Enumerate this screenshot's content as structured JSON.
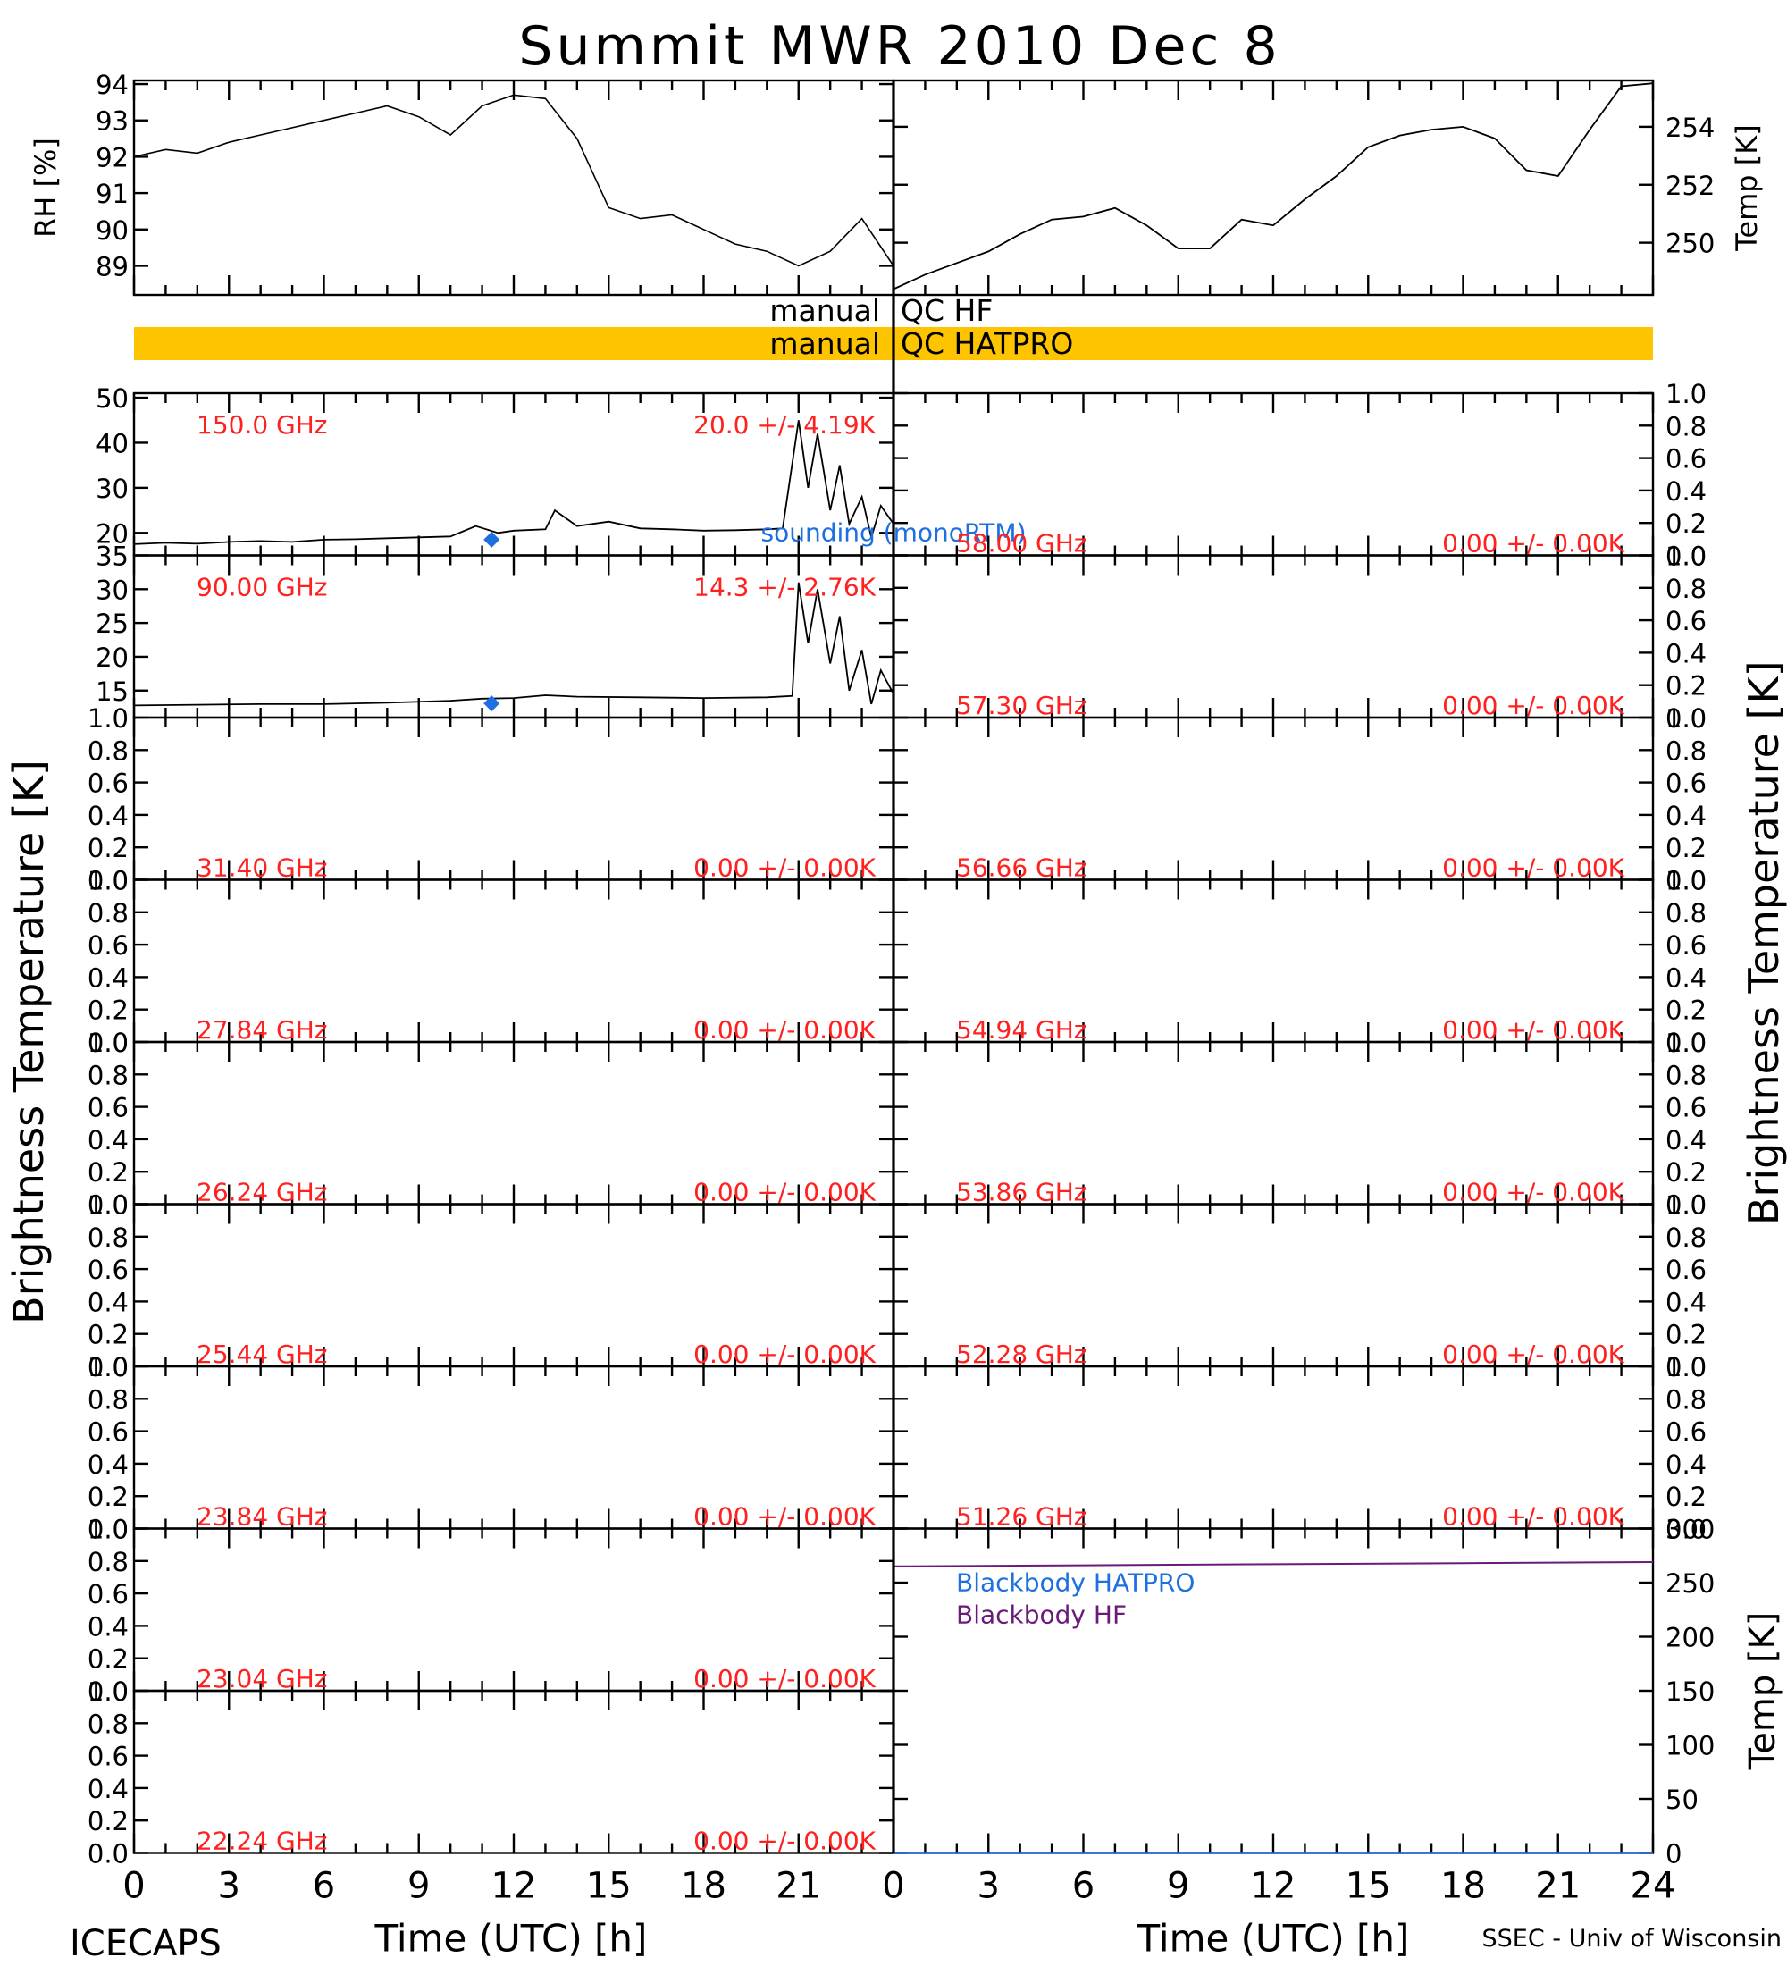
{
  "title": "Summit MWR 2010 Dec  8",
  "footer_left": "ICECAPS",
  "footer_right": "SSEC - Univ of Wisconsin",
  "colors": {
    "qc_bar": "#FFC400",
    "freq_label": "#FF2020",
    "sounding": "#1E6FE0",
    "bb_hatpro": "#1E6FE0",
    "bb_hf": "#6A1B7A",
    "line": "#000000"
  },
  "qc": {
    "hf_label": "manual  QC HF",
    "hatpro_label": "manual  QC HATPRO"
  },
  "chart_data": [
    {
      "id": "rh",
      "type": "line",
      "ylabel": "RH [%]",
      "xlim": [
        0,
        24
      ],
      "ylim": [
        88.2,
        94.1
      ],
      "yticks": [
        "89",
        "90",
        "91",
        "92",
        "93",
        "94"
      ],
      "series": [
        {
          "x": [
            0,
            1,
            2,
            3,
            4,
            5,
            6,
            7,
            8,
            9,
            10,
            11,
            12,
            13,
            14,
            15,
            16,
            17,
            18,
            19,
            20,
            21,
            22,
            23,
            24
          ],
          "y": [
            92.0,
            92.2,
            92.1,
            92.4,
            92.6,
            92.8,
            93.0,
            93.2,
            93.4,
            93.1,
            92.6,
            93.4,
            93.7,
            93.6,
            92.5,
            90.6,
            90.3,
            90.4,
            90.0,
            89.6,
            89.4,
            89.0,
            89.4,
            90.3,
            89.0
          ]
        }
      ]
    },
    {
      "id": "temp",
      "type": "line",
      "ylabel": "Temp [K]",
      "xlim": [
        0,
        24
      ],
      "ylim": [
        248.2,
        255.6
      ],
      "yticks": [
        "250",
        "252",
        "254"
      ],
      "series": [
        {
          "x": [
            0,
            1,
            2,
            3,
            4,
            5,
            6,
            7,
            8,
            9,
            10,
            11,
            12,
            13,
            14,
            15,
            16,
            17,
            18,
            19,
            20,
            21,
            22,
            23,
            24
          ],
          "y": [
            248.4,
            248.9,
            249.3,
            249.7,
            250.3,
            250.8,
            250.9,
            251.2,
            250.6,
            249.8,
            249.8,
            250.8,
            250.6,
            251.5,
            252.3,
            253.3,
            253.7,
            253.9,
            254.0,
            253.6,
            252.5,
            252.3,
            253.9,
            255.4,
            255.5
          ]
        }
      ]
    },
    {
      "id": "bt150",
      "type": "line",
      "freq_label": "150.0 GHz",
      "stat_label": "20.0 +/-  4.19K",
      "xlim": [
        0,
        24
      ],
      "ylim": [
        15,
        51
      ],
      "yticks": [
        "20",
        "30",
        "40",
        "50"
      ],
      "sounding_label": "sounding (monoRTM)",
      "sounding_point": {
        "x": 11.3,
        "y": 18.5
      },
      "series": [
        {
          "x": [
            0,
            1,
            2,
            3,
            4,
            5,
            6,
            7,
            8,
            9,
            10,
            10.8,
            11.5,
            12,
            13,
            13.3,
            14,
            15,
            16,
            17,
            18,
            19,
            20,
            20.5,
            21,
            21.3,
            21.6,
            22,
            22.3,
            22.6,
            23,
            23.3,
            23.6,
            24
          ],
          "y": [
            17.5,
            17.8,
            17.6,
            18.0,
            18.2,
            18.0,
            18.5,
            18.6,
            18.8,
            19.0,
            19.2,
            21.5,
            20.0,
            20.5,
            20.8,
            25.0,
            21.5,
            22.5,
            21.0,
            20.8,
            20.5,
            20.6,
            20.8,
            21.0,
            45.0,
            30.0,
            42.0,
            25.0,
            35.0,
            22.0,
            28.0,
            19.0,
            26.0,
            22.0
          ]
        }
      ]
    },
    {
      "id": "bt90",
      "type": "line",
      "freq_label": "90.00 GHz",
      "stat_label": "14.3 +/-  2.76K",
      "xlim": [
        0,
        24
      ],
      "ylim": [
        11,
        35
      ],
      "yticks": [
        "15",
        "20",
        "25",
        "30",
        "35"
      ],
      "sounding_point": {
        "x": 11.3,
        "y": 13.1
      },
      "series": [
        {
          "x": [
            0,
            2,
            4,
            6,
            8,
            10,
            11,
            12,
            13,
            14,
            16,
            18,
            20,
            20.8,
            21,
            21.3,
            21.6,
            22,
            22.3,
            22.6,
            23,
            23.3,
            23.6,
            24
          ],
          "y": [
            12.8,
            12.9,
            13.0,
            13.0,
            13.2,
            13.5,
            13.8,
            13.9,
            14.3,
            14.1,
            14.0,
            13.9,
            14.0,
            14.2,
            31.0,
            22.0,
            30.0,
            19.0,
            26.0,
            15.0,
            21.0,
            13.0,
            18.0,
            14.5
          ]
        }
      ]
    },
    {
      "id": "bt31.40",
      "type": "line",
      "freq_label": "31.40 GHz",
      "stat_label": "0.00 +/-  0.00K",
      "ylim": [
        0,
        1
      ],
      "series": []
    },
    {
      "id": "bt27.84",
      "type": "line",
      "freq_label": "27.84 GHz",
      "stat_label": "0.00 +/-  0.00K",
      "ylim": [
        0,
        1
      ],
      "series": []
    },
    {
      "id": "bt26.24",
      "type": "line",
      "freq_label": "26.24 GHz",
      "stat_label": "0.00 +/-  0.00K",
      "ylim": [
        0,
        1
      ],
      "series": []
    },
    {
      "id": "bt25.44",
      "type": "line",
      "freq_label": "25.44 GHz",
      "stat_label": "0.00 +/-  0.00K",
      "ylim": [
        0,
        1
      ],
      "series": []
    },
    {
      "id": "bt23.84",
      "type": "line",
      "freq_label": "23.84 GHz",
      "stat_label": "0.00 +/-  0.00K",
      "ylim": [
        0,
        1
      ],
      "series": []
    },
    {
      "id": "bt23.04",
      "type": "line",
      "freq_label": "23.04 GHz",
      "stat_label": "0.00 +/-  0.00K",
      "ylim": [
        0,
        1
      ],
      "series": []
    },
    {
      "id": "bt22.24",
      "type": "line",
      "freq_label": "22.24 GHz",
      "stat_label": "0.00 +/-  0.00K",
      "ylim": [
        0,
        1
      ],
      "series": []
    },
    {
      "id": "bt58.00",
      "type": "line",
      "freq_label": "58.00 GHz",
      "stat_label": "0.00 +/-  0.00K",
      "ylim": [
        0,
        1
      ],
      "series": []
    },
    {
      "id": "bt57.30",
      "type": "line",
      "freq_label": "57.30 GHz",
      "stat_label": "0.00 +/-  0.00K",
      "ylim": [
        0,
        1
      ],
      "series": []
    },
    {
      "id": "bt56.66",
      "type": "line",
      "freq_label": "56.66 GHz",
      "stat_label": "0.00 +/-  0.00K",
      "ylim": [
        0,
        1
      ],
      "series": []
    },
    {
      "id": "bt54.94",
      "type": "line",
      "freq_label": "54.94 GHz",
      "stat_label": "0.00 +/-  0.00K",
      "ylim": [
        0,
        1
      ],
      "series": []
    },
    {
      "id": "bt53.86",
      "type": "line",
      "freq_label": "53.86 GHz",
      "stat_label": "0.00 +/-  0.00K",
      "ylim": [
        0,
        1
      ],
      "series": []
    },
    {
      "id": "bt52.28",
      "type": "line",
      "freq_label": "52.28 GHz",
      "stat_label": "0.00 +/-  0.00K",
      "ylim": [
        0,
        1
      ],
      "series": []
    },
    {
      "id": "bt51.26",
      "type": "line",
      "freq_label": "51.26 GHz",
      "stat_label": "0.00 +/-  0.00K",
      "ylim": [
        0,
        1
      ],
      "series": []
    },
    {
      "id": "blackbody",
      "type": "line",
      "ylabel": "Temp [K]",
      "xlim": [
        0,
        24
      ],
      "ylim": [
        0,
        300
      ],
      "yticks": [
        "0",
        "50",
        "100",
        "150",
        "200",
        "250",
        "300"
      ],
      "series": [
        {
          "name": "Blackbody HATPRO",
          "x": [
            0,
            24
          ],
          "y": [
            0,
            0
          ]
        },
        {
          "name": "Blackbody HF",
          "x": [
            0,
            6,
            12,
            18,
            24
          ],
          "y": [
            265,
            266,
            267,
            268,
            269
          ]
        }
      ]
    }
  ],
  "small_yticks": [
    "0.0",
    "0.2",
    "0.4",
    "0.6",
    "0.8",
    "1.0"
  ],
  "bt_ylabel": "Brightness Temperature [K]",
  "xaxis": {
    "ticks_left": [
      "0",
      "3",
      "6",
      "9",
      "12",
      "15",
      "18",
      "21"
    ],
    "ticks_right": [
      "0",
      "3",
      "6",
      "9",
      "12",
      "15",
      "18",
      "21",
      "24"
    ],
    "label": "Time (UTC) [h]"
  }
}
